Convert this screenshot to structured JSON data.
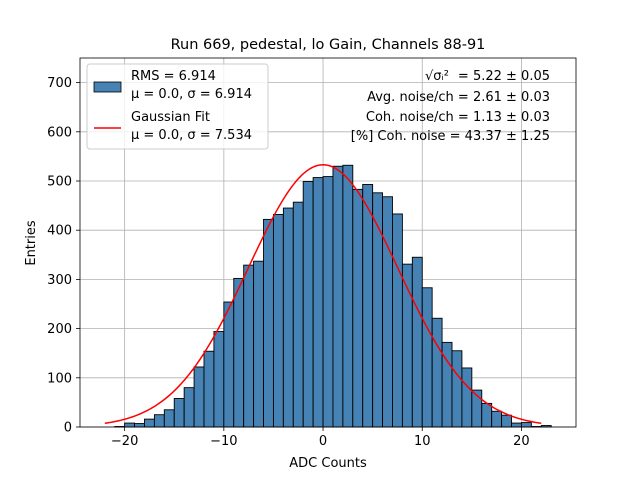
{
  "chart_data": {
    "type": "bar",
    "title": "Run 669, pedestal, lo Gain, Channels 88-91",
    "xlabel": "ADC Counts",
    "ylabel": "Entries",
    "xlim": [
      -24.5,
      25.5
    ],
    "ylim": [
      0,
      750
    ],
    "grid": true,
    "xticks": [
      -20,
      -10,
      0,
      10,
      20
    ],
    "xtick_labels": [
      "−20",
      "−10",
      "0",
      "10",
      "20"
    ],
    "yticks": [
      0,
      100,
      200,
      300,
      400,
      500,
      600,
      700
    ],
    "ytick_labels": [
      "0",
      "100",
      "200",
      "300",
      "400",
      "500",
      "600",
      "700"
    ],
    "bin_width": 1,
    "bin_edges_start": -21,
    "values": [
      1,
      8,
      7,
      16,
      25,
      35,
      58,
      80,
      122,
      154,
      194,
      254,
      302,
      329,
      337,
      422,
      432,
      445,
      457,
      499,
      507,
      509,
      530,
      532,
      483,
      493,
      476,
      468,
      433,
      331,
      345,
      283,
      221,
      172,
      155,
      120,
      75,
      48,
      32,
      24,
      8,
      9,
      1,
      3
    ],
    "series": [
      {
        "name": "RMS = 6.914",
        "stats": "μ = 0.0, σ = 6.914",
        "kind": "histogram",
        "color": "#4682b4"
      },
      {
        "name": "Gaussian Fit",
        "stats": "μ = 0.0, σ = 7.534",
        "kind": "curve",
        "color": "#ff0000",
        "mu": 0.0,
        "sigma": 7.534,
        "amplitude": 533,
        "x_range": [
          -22,
          22
        ]
      }
    ],
    "legend_position": "top-left",
    "annotations": [
      {
        "label": "√σᵢ²",
        "value": "= 5.22 ± 0.05"
      },
      {
        "label": "",
        "value": "Avg. noise/ch = 2.61 ± 0.03"
      },
      {
        "label": "",
        "value": "Coh. noise/ch = 1.13 ± 0.03"
      },
      {
        "label": "",
        "value": "[%] Coh. noise = 43.37 ± 1.25"
      }
    ]
  }
}
